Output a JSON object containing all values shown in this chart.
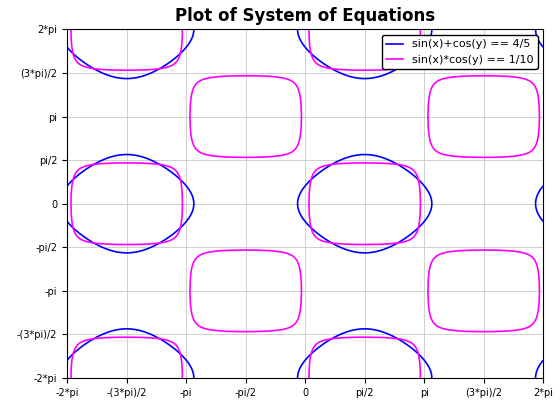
{
  "title": "Plot of System of Equations",
  "title_fontsize": 12,
  "title_fontweight": "bold",
  "xmin": -6.283185307179586,
  "xmax": 6.283185307179586,
  "ymin": -6.283185307179586,
  "ymax": 6.283185307179586,
  "xticks": [
    -6.283185307179586,
    -4.71238898038469,
    -3.141592653589793,
    -1.5707963267948966,
    0,
    1.5707963267948966,
    3.141592653589793,
    4.71238898038469,
    6.283185307179586
  ],
  "xticklabels": [
    "-2*pi",
    "-(3*pi)/2",
    "-pi",
    "-pi/2",
    "0",
    "pi/2",
    "pi",
    "(3*pi)/2",
    "2*pi"
  ],
  "yticks": [
    -6.283185307179586,
    -4.71238898038469,
    -3.141592653589793,
    -1.5707963267948966,
    0,
    1.5707963267948966,
    3.141592653589793,
    4.71238898038469,
    6.283185307179586
  ],
  "yticklabels": [
    "-2*pi",
    "-(3*pi)/2",
    "-pi",
    "-pi/2",
    "0",
    "pi/2",
    "pi",
    "(3*pi)/2",
    "2*pi"
  ],
  "eq1_label": "sin(x)+cos(y) == 4/5",
  "eq2_label": "sin(x)*cos(y) == 1/10",
  "eq1_color": "#0000FF",
  "eq2_color": "#FF00FF",
  "eq1_linewidth": 1.2,
  "eq2_linewidth": 1.2,
  "scatter_color": "none",
  "scatter_edgecolor": "black",
  "scatter_size": 30,
  "scatter_linewidth": 0.8,
  "grid_color": "#c8c8c8",
  "grid_linewidth": 0.6,
  "background_color": "white",
  "eq1_value": 0.8,
  "eq2_value": 0.1,
  "tick_fontsize": 7,
  "legend_fontsize": 8
}
